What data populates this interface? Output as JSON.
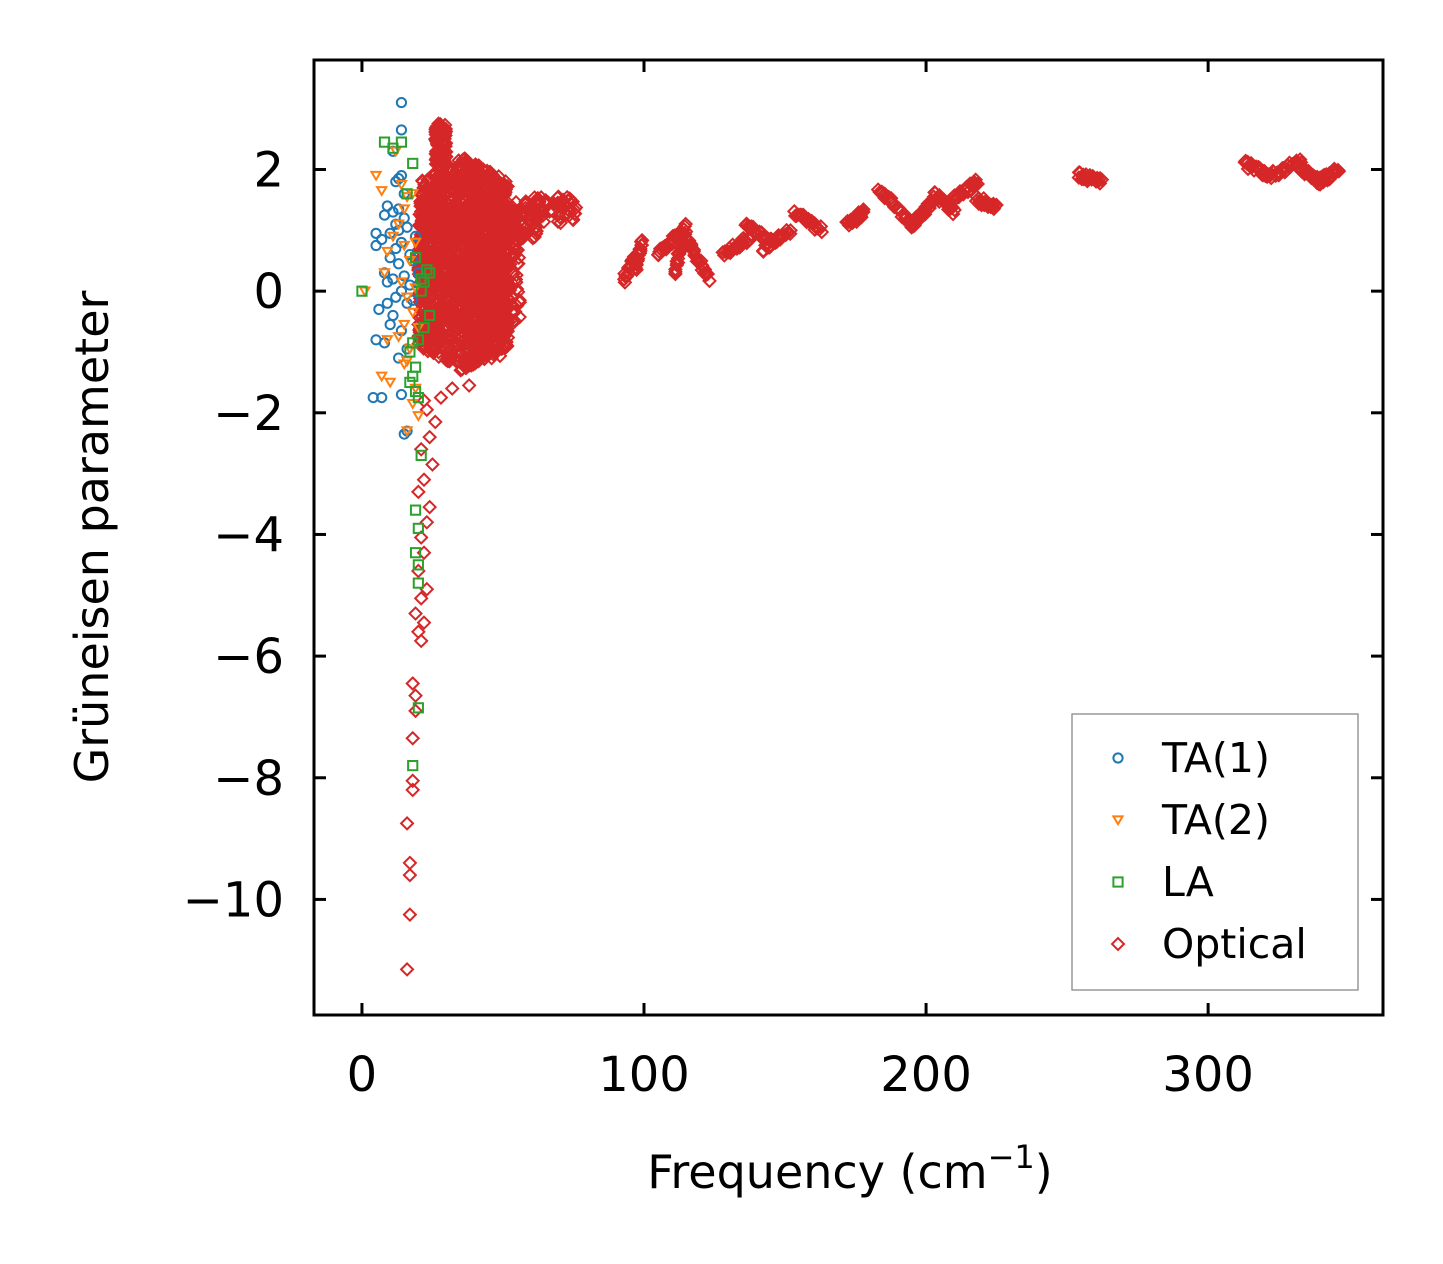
{
  "chart_data": {
    "type": "scatter",
    "title": "",
    "xlabel": "Frequency (cm",
    "xlabel_sup": "−1",
    "xlabel_end": ")",
    "ylabel": "Grüneisen parameter",
    "xlim": [
      -17,
      362
    ],
    "ylim": [
      -11.9,
      3.8
    ],
    "xticks": [
      0,
      100,
      200,
      300
    ],
    "xtick_labels": [
      "0",
      "100",
      "200",
      "300"
    ],
    "yticks": [
      2,
      0,
      -2,
      -4,
      -6,
      -8,
      -10
    ],
    "ytick_labels": [
      "2",
      "0",
      "−2",
      "−4",
      "−6",
      "−8",
      "−10"
    ],
    "legend_position": "lower-right",
    "series": [
      {
        "name": "TA(1)",
        "marker": "circle",
        "color": "#1f77b4",
        "points": [
          [
            14,
            3.1
          ],
          [
            14,
            2.65
          ],
          [
            11,
            2.3
          ],
          [
            13,
            1.85
          ],
          [
            14,
            1.9
          ],
          [
            12,
            1.8
          ],
          [
            15,
            1.6
          ],
          [
            9,
            1.4
          ],
          [
            11,
            1.3
          ],
          [
            13,
            1.35
          ],
          [
            8,
            1.25
          ],
          [
            15,
            1.2
          ],
          [
            12,
            1.1
          ],
          [
            13,
            1.0
          ],
          [
            16,
            1.05
          ],
          [
            10,
            0.95
          ],
          [
            5,
            0.95
          ],
          [
            7,
            0.85
          ],
          [
            14,
            0.8
          ],
          [
            5,
            0.75
          ],
          [
            12,
            0.7
          ],
          [
            10,
            0.55
          ],
          [
            18,
            0.5
          ],
          [
            13,
            0.45
          ],
          [
            8,
            0.3
          ],
          [
            15,
            0.25
          ],
          [
            11,
            0.2
          ],
          [
            9,
            0.15
          ],
          [
            17,
            0.1
          ],
          [
            14,
            0.0
          ],
          [
            12,
            -0.1
          ],
          [
            16,
            -0.2
          ],
          [
            6,
            -0.3
          ],
          [
            11,
            -0.4
          ],
          [
            10,
            -0.55
          ],
          [
            14,
            -0.65
          ],
          [
            5,
            -0.8
          ],
          [
            8,
            -0.85
          ],
          [
            16,
            -0.95
          ],
          [
            13,
            -1.1
          ],
          [
            14,
            -1.7
          ],
          [
            4,
            -1.75
          ],
          [
            7,
            -1.75
          ],
          [
            16,
            -2.3
          ],
          [
            15,
            -2.35
          ],
          [
            18,
            -0.15
          ],
          [
            17,
            0.6
          ],
          [
            19,
            0.9
          ],
          [
            20,
            0.3
          ],
          [
            9,
            -0.2
          ]
        ]
      },
      {
        "name": "TA(2)",
        "marker": "triangle-down",
        "color": "#ff7f0e",
        "points": [
          [
            12,
            2.3
          ],
          [
            5,
            1.9
          ],
          [
            7,
            1.65
          ],
          [
            14,
            1.75
          ],
          [
            16,
            1.55
          ],
          [
            15,
            1.35
          ],
          [
            18,
            1.6
          ],
          [
            13,
            1.1
          ],
          [
            11,
            0.9
          ],
          [
            15,
            0.75
          ],
          [
            9,
            0.65
          ],
          [
            17,
            0.5
          ],
          [
            8,
            0.3
          ],
          [
            14,
            0.15
          ],
          [
            19,
            0.05
          ],
          [
            16,
            -0.1
          ],
          [
            18,
            -0.35
          ],
          [
            15,
            -0.55
          ],
          [
            13,
            -0.75
          ],
          [
            9,
            -0.8
          ],
          [
            17,
            -0.95
          ],
          [
            16,
            -1.15
          ],
          [
            15,
            -1.2
          ],
          [
            7,
            -1.4
          ],
          [
            10,
            -1.5
          ],
          [
            19,
            -1.6
          ],
          [
            18,
            -1.85
          ],
          [
            20,
            -2.05
          ],
          [
            16,
            -2.3
          ],
          [
            1,
            0.0
          ],
          [
            19,
            0.8
          ],
          [
            20,
            -0.6
          ]
        ]
      },
      {
        "name": "LA",
        "marker": "square",
        "color": "#2ca02c",
        "points": [
          [
            8,
            2.45
          ],
          [
            14,
            2.45
          ],
          [
            11,
            2.35
          ],
          [
            18,
            2.1
          ],
          [
            16,
            1.6
          ],
          [
            19,
            0.55
          ],
          [
            23,
            0.35
          ],
          [
            24,
            0.3
          ],
          [
            22,
            0.15
          ],
          [
            21,
            0.0
          ],
          [
            24,
            -0.4
          ],
          [
            22,
            -0.6
          ],
          [
            18,
            -0.85
          ],
          [
            17,
            -1.0
          ],
          [
            20,
            -0.8
          ],
          [
            19,
            -1.25
          ],
          [
            18,
            -1.4
          ],
          [
            17,
            -1.5
          ],
          [
            19,
            -1.65
          ],
          [
            20,
            -1.75
          ],
          [
            21,
            -2.7
          ],
          [
            19,
            -3.6
          ],
          [
            20,
            -3.9
          ],
          [
            19,
            -4.3
          ],
          [
            20,
            -4.5
          ],
          [
            20,
            -4.8
          ],
          [
            20,
            -6.85
          ],
          [
            18,
            -7.8
          ],
          [
            0,
            0.0
          ],
          [
            21,
            0.2
          ]
        ]
      },
      {
        "name": "Optical",
        "marker": "diamond",
        "color": "#d62728",
        "points": [],
        "points_sparse": [
          [
            16,
            -11.15
          ],
          [
            17,
            -10.25
          ],
          [
            17,
            -9.6
          ],
          [
            17,
            -9.4
          ],
          [
            16,
            -8.75
          ],
          [
            18,
            -8.2
          ],
          [
            18,
            -8.05
          ],
          [
            18,
            -7.35
          ],
          [
            19,
            -6.9
          ],
          [
            19,
            -6.65
          ],
          [
            18,
            -6.45
          ],
          [
            21,
            -5.75
          ],
          [
            20,
            -5.6
          ],
          [
            22,
            -5.45
          ],
          [
            19,
            -5.3
          ],
          [
            21,
            -5.05
          ],
          [
            23,
            -4.9
          ],
          [
            20,
            -4.6
          ],
          [
            22,
            -4.3
          ],
          [
            21,
            -4.05
          ],
          [
            23,
            -3.8
          ],
          [
            24,
            -3.55
          ],
          [
            20,
            -3.3
          ],
          [
            22,
            -3.1
          ],
          [
            25,
            -2.85
          ],
          [
            21,
            -2.6
          ],
          [
            24,
            -2.4
          ],
          [
            26,
            -2.15
          ],
          [
            23,
            -1.95
          ],
          [
            22,
            -1.8
          ],
          [
            28,
            -1.75
          ],
          [
            32,
            -1.6
          ],
          [
            38,
            -1.55
          ],
          [
            35,
            -1.3
          ],
          [
            45,
            -0.95
          ],
          [
            47,
            -0.85
          ]
        ],
        "clusters": [
          {
            "x": [
              20,
              52
            ],
            "y": [
              -1.3,
              2.2
            ],
            "n": 1500
          },
          {
            "x": [
              26,
              30
            ],
            "y": [
              2.0,
              2.8
            ],
            "n": 90
          },
          {
            "x": [
              30,
              56
            ],
            "y": [
              -0.8,
              1.6
            ],
            "n": 300
          },
          {
            "x": [
              40,
              50
            ],
            "y": [
              -1.2,
              -0.4
            ],
            "n": 30
          },
          {
            "x": [
              52,
              62
            ],
            "y": [
              0.8,
              1.5
            ],
            "n": 60
          },
          {
            "x": [
              60,
              76
            ],
            "y": [
              1.1,
              1.6
            ],
            "n": 60
          }
        ],
        "path_segments": [
          {
            "x": [
              93,
              97
            ],
            "y": [
              0.2,
              0.6
            ]
          },
          {
            "x": [
              97,
              99
            ],
            "y": [
              0.4,
              0.8
            ]
          },
          {
            "x": [
              105,
              113
            ],
            "y": [
              0.6,
              1.0
            ]
          },
          {
            "x": [
              111,
              115
            ],
            "y": [
              0.3,
              1.1
            ]
          },
          {
            "x": [
              115,
              123
            ],
            "y": [
              0.9,
              0.2
            ]
          },
          {
            "x": [
              128,
              138
            ],
            "y": [
              0.6,
              0.9
            ]
          },
          {
            "x": [
              136,
              145
            ],
            "y": [
              1.1,
              0.8
            ]
          },
          {
            "x": [
              142,
              152
            ],
            "y": [
              0.7,
              1.0
            ]
          },
          {
            "x": [
              153,
              163
            ],
            "y": [
              1.3,
              1.0
            ]
          },
          {
            "x": [
              172,
              178
            ],
            "y": [
              1.1,
              1.3
            ]
          },
          {
            "x": [
              183,
              195
            ],
            "y": [
              1.7,
              1.1
            ]
          },
          {
            "x": [
              195,
              203
            ],
            "y": [
              1.1,
              1.5
            ]
          },
          {
            "x": [
              203,
              210
            ],
            "y": [
              1.6,
              1.3
            ]
          },
          {
            "x": [
              210,
              218
            ],
            "y": [
              1.5,
              1.8
            ]
          },
          {
            "x": [
              218,
              225
            ],
            "y": [
              1.5,
              1.4
            ]
          },
          {
            "x": [
              254,
              262
            ],
            "y": [
              1.9,
              1.8
            ]
          },
          {
            "x": [
              313,
              322
            ],
            "y": [
              2.1,
              1.9
            ]
          },
          {
            "x": [
              322,
              333
            ],
            "y": [
              1.9,
              2.15
            ]
          },
          {
            "x": [
              333,
              340
            ],
            "y": [
              2.0,
              1.8
            ]
          },
          {
            "x": [
              340,
              346
            ],
            "y": [
              1.8,
              2.0
            ]
          }
        ]
      }
    ]
  }
}
